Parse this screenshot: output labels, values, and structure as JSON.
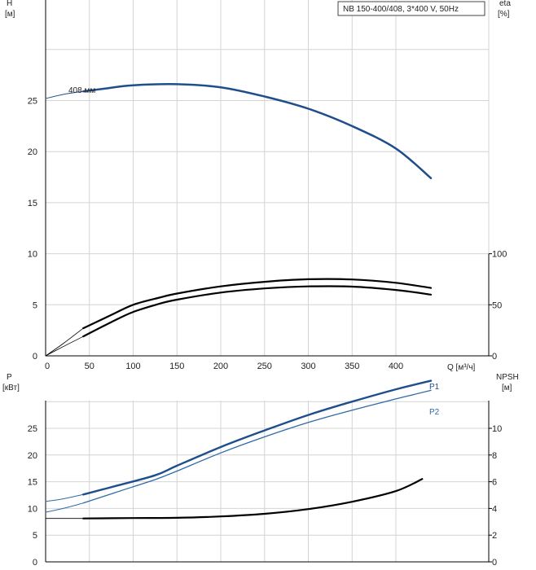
{
  "colors": {
    "blue": "#1f4e8c",
    "black": "#000000",
    "thin_blue": "#2f6aa8"
  },
  "title": "NB 150-400/408, 3*400 V, 50Hz",
  "chart_data": [
    {
      "type": "line",
      "id": "head_eta",
      "x_range": [
        0,
        440
      ],
      "y_left_range": [
        0,
        30
      ],
      "y_right_range": [
        0,
        100
      ],
      "grid": true,
      "left_axis_label_line1": "H",
      "left_axis_label_line2": "[м]",
      "right_axis_label_line1": "eta",
      "right_axis_label_line2": "[%]",
      "x_label": "Q [м³/ч]",
      "x_ticks": [
        0,
        50,
        100,
        150,
        200,
        250,
        300,
        350,
        400
      ],
      "x_tick_labels": [
        "0",
        "50",
        "100",
        "150",
        "200",
        "250",
        "300",
        "350",
        "400"
      ],
      "y_left_ticks": [
        0,
        5,
        10,
        15,
        20,
        25
      ],
      "y_left_tick_labels": [
        "0",
        "5",
        "10",
        "15",
        "20",
        "25"
      ],
      "y_right_ticks": [
        0,
        50,
        100
      ],
      "y_right_tick_labels": [
        "0",
        "50",
        "100"
      ],
      "annotation": "408 мм",
      "series": [
        {
          "role": "head_ext",
          "axis": "left",
          "x": [
            0,
            20,
            43
          ],
          "y": [
            25.2,
            25.6,
            25.9
          ]
        },
        {
          "role": "head",
          "axis": "left",
          "x": [
            43,
            70,
            100,
            150,
            200,
            250,
            300,
            350,
            400,
            440
          ],
          "y": [
            25.9,
            26.2,
            26.5,
            26.6,
            26.3,
            25.4,
            24.2,
            22.5,
            20.3,
            17.4
          ]
        },
        {
          "role": "eta_ext",
          "axis": "right",
          "x": [
            0,
            20,
            43
          ],
          "y": [
            0,
            12,
            27
          ]
        },
        {
          "role": "eta",
          "axis": "right",
          "x": [
            43,
            75,
            100,
            130,
            150,
            200,
            250,
            300,
            350,
            400,
            440
          ],
          "y": [
            27,
            40,
            50,
            57,
            61,
            68,
            72.5,
            75,
            74.8,
            71.5,
            66.5
          ]
        },
        {
          "role": "eta_ext",
          "axis": "right",
          "x": [
            0,
            20,
            43
          ],
          "y": [
            0,
            9,
            19
          ]
        },
        {
          "role": "eta",
          "axis": "right",
          "x": [
            43,
            75,
            100,
            130,
            150,
            200,
            250,
            300,
            350,
            400,
            440
          ],
          "y": [
            19,
            33,
            43,
            51,
            55,
            62,
            66,
            68,
            67.8,
            64.5,
            60
          ]
        }
      ]
    },
    {
      "type": "line",
      "id": "power_npsh",
      "x_range": [
        0,
        440
      ],
      "y_left_range": [
        0,
        30
      ],
      "y_right_range": [
        0,
        12
      ],
      "grid": true,
      "left_axis_label_line1": "P",
      "left_axis_label_line2": "[кВт]",
      "right_axis_label_line1": "NPSH",
      "right_axis_label_line2": "[м]",
      "y_left_ticks": [
        0,
        5,
        10,
        15,
        20,
        25
      ],
      "y_left_tick_labels": [
        "0",
        "5",
        "10",
        "15",
        "20",
        "25"
      ],
      "y_right_ticks": [
        0,
        2,
        4,
        6,
        8,
        10
      ],
      "y_right_tick_labels": [
        "0",
        "2",
        "4",
        "6",
        "8",
        "10"
      ],
      "series": [
        {
          "name": "P1",
          "axis": "left",
          "x": [
            0,
            20,
            43
          ],
          "y": [
            11.3,
            11.8,
            12.6
          ],
          "role": "p_ext"
        },
        {
          "name": "P1",
          "axis": "left",
          "x": [
            43,
            80,
            125,
            150,
            200,
            250,
            300,
            350,
            400,
            440
          ],
          "y": [
            12.6,
            14.2,
            16.2,
            18.0,
            21.5,
            24.6,
            27.5,
            30.0,
            32.3,
            33.9
          ],
          "role": "p1"
        },
        {
          "name": "P2",
          "axis": "left",
          "x": [
            0,
            20,
            43
          ],
          "y": [
            9.3,
            10.0,
            11.0
          ],
          "role": "p_ext"
        },
        {
          "name": "P2",
          "axis": "left",
          "x": [
            43,
            80,
            125,
            150,
            200,
            250,
            300,
            350,
            400,
            440
          ],
          "y": [
            11.0,
            13.0,
            15.4,
            17.0,
            20.4,
            23.4,
            26.1,
            28.4,
            30.5,
            32.1
          ],
          "role": "p2"
        },
        {
          "name": "NPSH",
          "axis": "right",
          "x": [
            0,
            43
          ],
          "y": [
            3.25,
            3.25
          ],
          "role": "n_ext"
        },
        {
          "name": "NPSH",
          "axis": "right",
          "x": [
            43,
            100,
            150,
            200,
            250,
            300,
            350,
            400,
            430
          ],
          "y": [
            3.25,
            3.28,
            3.3,
            3.4,
            3.6,
            3.95,
            4.5,
            5.3,
            6.2
          ],
          "role": "npsh"
        }
      ]
    }
  ]
}
